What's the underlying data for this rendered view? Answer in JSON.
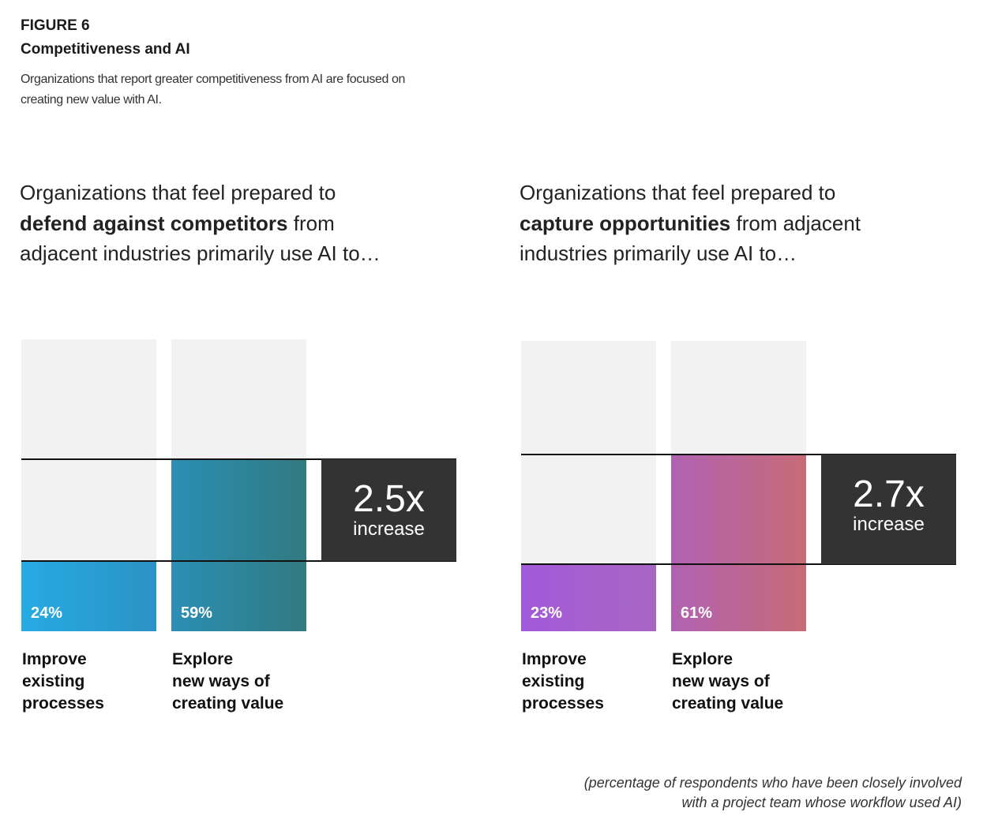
{
  "header": {
    "figure": "FIGURE 6",
    "title": "Competitiveness and AI",
    "subtitle": "Organizations that report greater competitiveness from AI are focused on creating new value with AI."
  },
  "chart_data": [
    {
      "type": "bar",
      "heading_pre": "Organizations that feel prepared to ",
      "heading_bold": "defend against competitors",
      "heading_post": " from adjacent industries primarily use AI to…",
      "categories": [
        "Improve\nexisting\nprocesses",
        "Explore\nnew ways of\ncreating value"
      ],
      "values": [
        24,
        59
      ],
      "value_labels": [
        "24%",
        "59%"
      ],
      "colors": [
        [
          "#26abe3",
          "#2b92c4"
        ],
        [
          "#2b8fb4",
          "#317a80"
        ]
      ],
      "ylim": [
        0,
        100
      ],
      "annotation": "2.5x",
      "annotation_note": "increase"
    },
    {
      "type": "bar",
      "heading_pre": "Organizations that feel prepared to ",
      "heading_bold": "capture opportunities",
      "heading_post": " from adjacent industries primarily use AI to…",
      "categories": [
        "Improve\nexisting\nprocesses",
        "Explore\nnew ways of\ncreating value"
      ],
      "values": [
        23,
        61
      ],
      "value_labels": [
        "23%",
        "61%"
      ],
      "colors": [
        [
          "#a25ada",
          "#a866c2"
        ],
        [
          "#b062b2",
          "#c86b78"
        ]
      ],
      "ylim": [
        0,
        100
      ],
      "annotation": "2.7x",
      "annotation_note": "increase"
    }
  ],
  "footnote": "(percentage of respondents who have been closely involved\nwith a project team whose workflow used AI)"
}
